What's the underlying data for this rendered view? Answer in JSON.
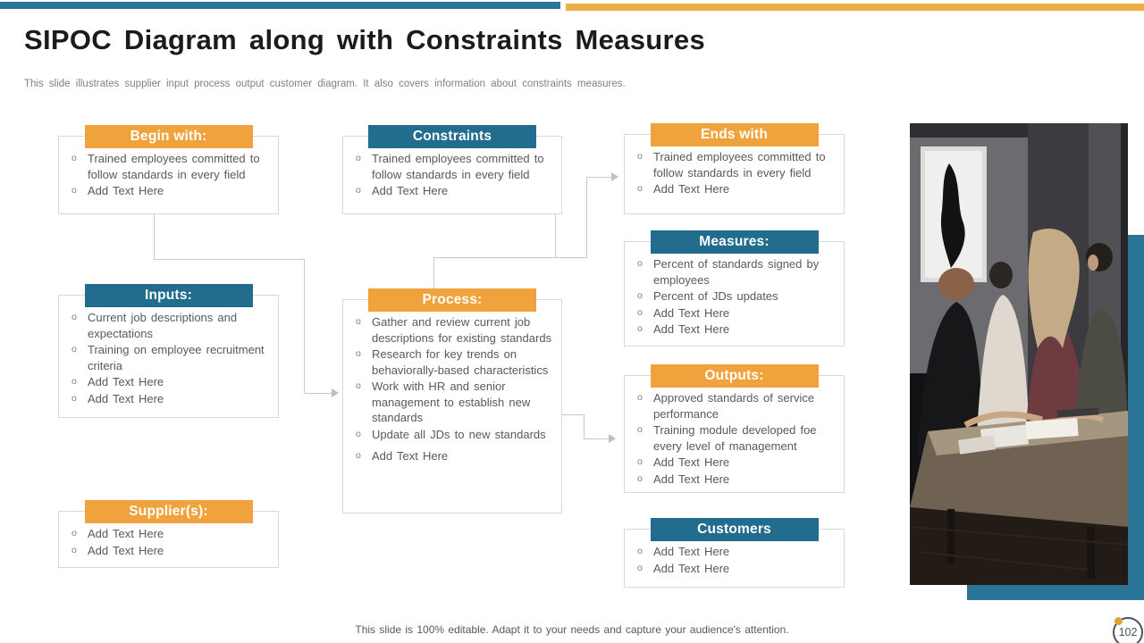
{
  "slide": {
    "title": "SIPOC Diagram along with Constraints Measures",
    "subtitle": "This slide illustrates supplier input process output customer diagram. It also covers information about constraints measures.",
    "footer": "This slide is 100% editable. Adapt it to your needs and capture your audience's attention.",
    "page_number": "102"
  },
  "colors": {
    "teal": "#226C8E",
    "orange": "#F0A33C",
    "accent_teal": "#2B7697",
    "bar_orange": "#EBB041",
    "border_gray": "#D8D8D8",
    "text_gray": "#595959",
    "line_gray": "#C9C9C9",
    "badge": "#45565F"
  },
  "boxes": {
    "begin": {
      "label": "Begin with:",
      "items": [
        "Trained employees committed to follow standards in every field",
        "Add Text Here"
      ]
    },
    "constraints": {
      "label": "Constraints",
      "items": [
        "Trained employees committed to follow standards in every field",
        "Add Text Here"
      ]
    },
    "ends": {
      "label": "Ends with",
      "items": [
        "Trained employees committed to follow standards in every field",
        "Add Text Here"
      ]
    },
    "measures": {
      "label": "Measures:",
      "items": [
        "Percent of standards signed by employees",
        "Percent of JDs updates",
        "Add Text Here",
        "Add Text Here"
      ]
    },
    "inputs": {
      "label": "Inputs:",
      "items": [
        "Current job descriptions and expectations",
        "Training on employee recruitment criteria",
        "Add Text Here",
        "Add Text Here"
      ]
    },
    "process": {
      "label": "Process:",
      "items": [
        "Gather and review current job descriptions for existing standards",
        "Research for key trends on behaviorally-based characteristics",
        "Work with HR and senior management to establish new standards",
        "Update all JDs to new standards",
        "Add Text Here"
      ]
    },
    "outputs": {
      "label": "Outputs:",
      "items": [
        "Approved standards of service performance",
        "Training module developed foe every level of management",
        "Add Text Here",
        "Add Text Here"
      ]
    },
    "suppliers": {
      "label": "Supplier(s):",
      "items": [
        "Add Text Here",
        "Add Text Here"
      ]
    },
    "customers": {
      "label": "Customers",
      "items": [
        "Add Text Here",
        "Add Text Here"
      ]
    }
  }
}
